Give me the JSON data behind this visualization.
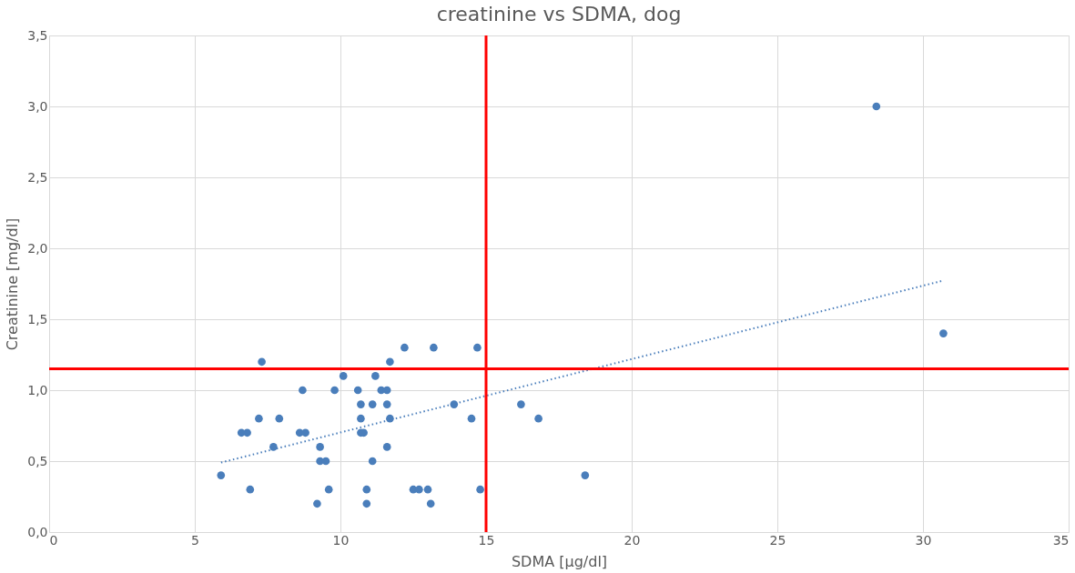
{
  "chart_data": {
    "type": "scatter",
    "title": "creatinine vs SDMA, dog",
    "xlabel": "SDMA [µg/dl]",
    "ylabel": "Creatinine [mg/dl]",
    "xlim": [
      0,
      35
    ],
    "xticks": [
      0,
      5,
      10,
      15,
      20,
      25,
      30,
      35
    ],
    "ylim": [
      0,
      3.5
    ],
    "yticks": [
      {
        "value": 0,
        "label": "0,0"
      },
      {
        "value": 0.5,
        "label": "0,5"
      },
      {
        "value": 1,
        "label": "1,0"
      },
      {
        "value": 1.5,
        "label": "1,5"
      },
      {
        "value": 2,
        "label": "2,0"
      },
      {
        "value": 2.5,
        "label": "2,5"
      },
      {
        "value": 3,
        "label": "3,0"
      },
      {
        "value": 3.5,
        "label": "3,5"
      }
    ],
    "grid": true,
    "legend": false,
    "marker": "circle",
    "series": [
      {
        "color": "#4a7ebb",
        "x": [
          5.9,
          6.6,
          6.8,
          6.9,
          7.2,
          7.3,
          7.7,
          7.9,
          8.6,
          8.7,
          8.8,
          9.2,
          9.3,
          9.3,
          9.5,
          9.6,
          9.8,
          10.1,
          10.6,
          10.7,
          10.7,
          10.7,
          10.8,
          10.9,
          10.9,
          11.1,
          11.1,
          11.2,
          11.4,
          11.6,
          11.6,
          11.6,
          11.7,
          11.7,
          12.2,
          12.5,
          12.7,
          13.0,
          13.1,
          13.2,
          13.9,
          14.5,
          14.7,
          14.8,
          16.2,
          16.8,
          18.4,
          28.4,
          30.7
        ],
        "values": [
          0.4,
          0.7,
          0.7,
          0.3,
          0.8,
          1.2,
          0.6,
          0.8,
          0.7,
          1.0,
          0.7,
          0.2,
          0.6,
          0.5,
          0.5,
          0.3,
          1.0,
          1.1,
          1.0,
          0.9,
          0.8,
          0.7,
          0.7,
          0.3,
          0.2,
          0.5,
          0.9,
          1.1,
          1.0,
          1.0,
          0.9,
          0.6,
          0.8,
          1.2,
          1.3,
          0.3,
          0.3,
          0.3,
          0.2,
          1.3,
          0.9,
          0.8,
          1.3,
          0.3,
          0.9,
          0.8,
          0.4,
          3.0,
          1.4
        ]
      },
      {
        "type": "line",
        "color": "#4a7ebb",
        "line_style": "dotted",
        "marker": "none",
        "x": [
          5.9,
          30.65
        ],
        "values": [
          0.49,
          1.77
        ]
      }
    ],
    "ref_lines": [
      {
        "axis": "x",
        "value": 15,
        "color": "#ff0000"
      },
      {
        "axis": "y",
        "value": 1.15,
        "color": "#ff0000"
      }
    ]
  }
}
